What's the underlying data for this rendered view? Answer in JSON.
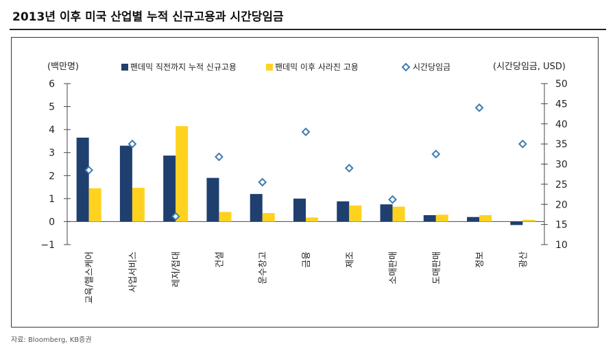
{
  "title": "2013년 이후 미국 산업별 누적 신규고용과 시간당임금",
  "source": "자료: Bloomberg, KB증권",
  "colors": {
    "series1": "#1f3f6f",
    "series2": "#ffd21f",
    "wage_marker": "#3d7bb0"
  },
  "chart_data": {
    "type": "bar",
    "title": "2013년 이후 미국 산업별 누적 신규고용과 시간당임금",
    "ylabel": "(백만명)",
    "y2label": "(시간당임금, USD)",
    "ylim": [
      -1,
      6
    ],
    "y2lim": [
      10,
      50
    ],
    "yticks": [
      -1,
      0,
      1,
      2,
      3,
      4,
      5,
      6
    ],
    "y2ticks": [
      10,
      15,
      20,
      25,
      30,
      35,
      40,
      45,
      50
    ],
    "ytick_labels": [
      "−1",
      "0",
      "1",
      "2",
      "3",
      "4",
      "5",
      "6"
    ],
    "y2tick_labels": [
      "10",
      "15",
      "20",
      "25",
      "30",
      "35",
      "40",
      "45",
      "50"
    ],
    "legend_position": "top",
    "grid": false,
    "categories": [
      "교육/헬스케어",
      "사업서비스",
      "레저/접대",
      "건설",
      "운수창고",
      "금융",
      "제조",
      "소매판매",
      "도매판매",
      "정보",
      "광산"
    ],
    "series": [
      {
        "name": "팬데믹 직전까지 누적 신규고용",
        "type": "bar",
        "axis": "left",
        "values": [
          3.65,
          3.3,
          2.87,
          1.9,
          1.2,
          1.0,
          0.88,
          0.75,
          0.28,
          0.2,
          -0.15
        ]
      },
      {
        "name": "팬데믹 이후 사라진 고용",
        "type": "bar",
        "axis": "left",
        "values": [
          1.45,
          1.47,
          4.15,
          0.42,
          0.37,
          0.18,
          0.7,
          0.65,
          0.3,
          0.28,
          0.08
        ]
      },
      {
        "name": "시간당임금",
        "type": "scatter",
        "axis": "right",
        "values": [
          28.5,
          35.0,
          17.0,
          31.8,
          25.5,
          38.0,
          29.0,
          21.2,
          32.5,
          44.0,
          35.0
        ]
      }
    ]
  }
}
